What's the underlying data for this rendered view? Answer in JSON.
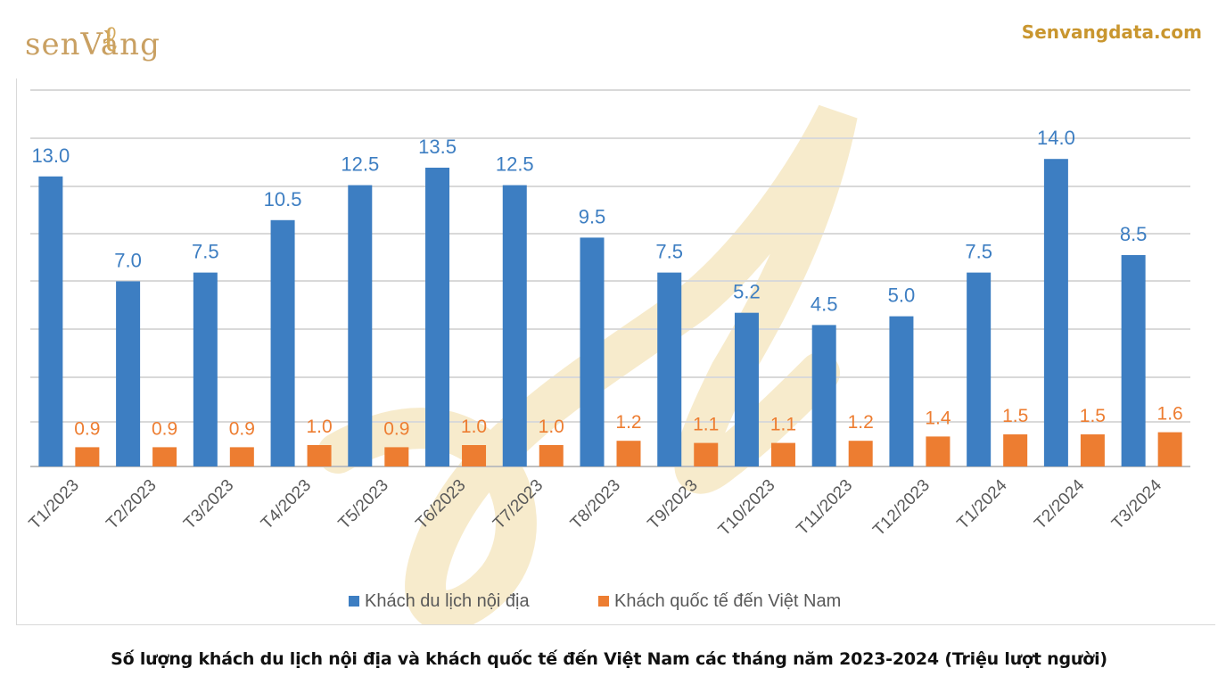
{
  "brand": {
    "logo_text": "senVàng",
    "site": "Senvangdata.com"
  },
  "colors": {
    "domestic": "#3d7ec2",
    "international": "#ed7d31",
    "grid": "#d9d9d9",
    "brand_gold": "#c9962f",
    "watermark": "#f1dba2"
  },
  "caption": "Số lượng khách du lịch nội địa và khách quốc tế đến Việt Nam các tháng năm 2023-2024 (Triệu lượt người)",
  "chart_data": {
    "type": "bar",
    "categories": [
      "T1/2023",
      "T2/2023",
      "T3/2023",
      "T4/2023",
      "T5/2023",
      "T6/2023",
      "T7/2023",
      "T8/2023",
      "T9/2023",
      "T10/2023",
      "T11/2023",
      "T12/2023",
      "T1/2024",
      "T2/2024",
      "T3/2024"
    ],
    "series": [
      {
        "name": "Khách du lịch nội địa",
        "color": "#3d7ec2",
        "values": [
          13.0,
          7.0,
          7.5,
          10.5,
          12.5,
          13.5,
          12.5,
          9.5,
          7.5,
          5.2,
          4.5,
          5.0,
          7.5,
          14.0,
          8.5
        ],
        "labels": [
          "13.0",
          "7.0",
          "7.5",
          "10.5",
          "12.5",
          "13.5",
          "12.5",
          "9.5",
          "7.5",
          "5.2",
          "4.5",
          "5.0",
          "7.5",
          "14.0",
          "8.5"
        ]
      },
      {
        "name": "Khách quốc tế đến Việt Nam",
        "color": "#ed7d31",
        "values": [
          0.9,
          0.9,
          0.9,
          1.0,
          0.9,
          1.0,
          1.0,
          1.2,
          1.1,
          1.1,
          1.2,
          1.4,
          1.5,
          1.5,
          1.6
        ],
        "labels": [
          "0.9",
          "0.9",
          "0.9",
          "1.0",
          "0.9",
          "1.0",
          "1.0",
          "1.2",
          "1.1",
          "1.1",
          "1.2",
          "1.4",
          "1.5",
          "1.5",
          "1.6"
        ]
      }
    ],
    "grid": true,
    "x_tick_rotation": "-45deg",
    "legend_position": "bottom-center",
    "title": "",
    "xlabel": "",
    "ylabel": ""
  }
}
